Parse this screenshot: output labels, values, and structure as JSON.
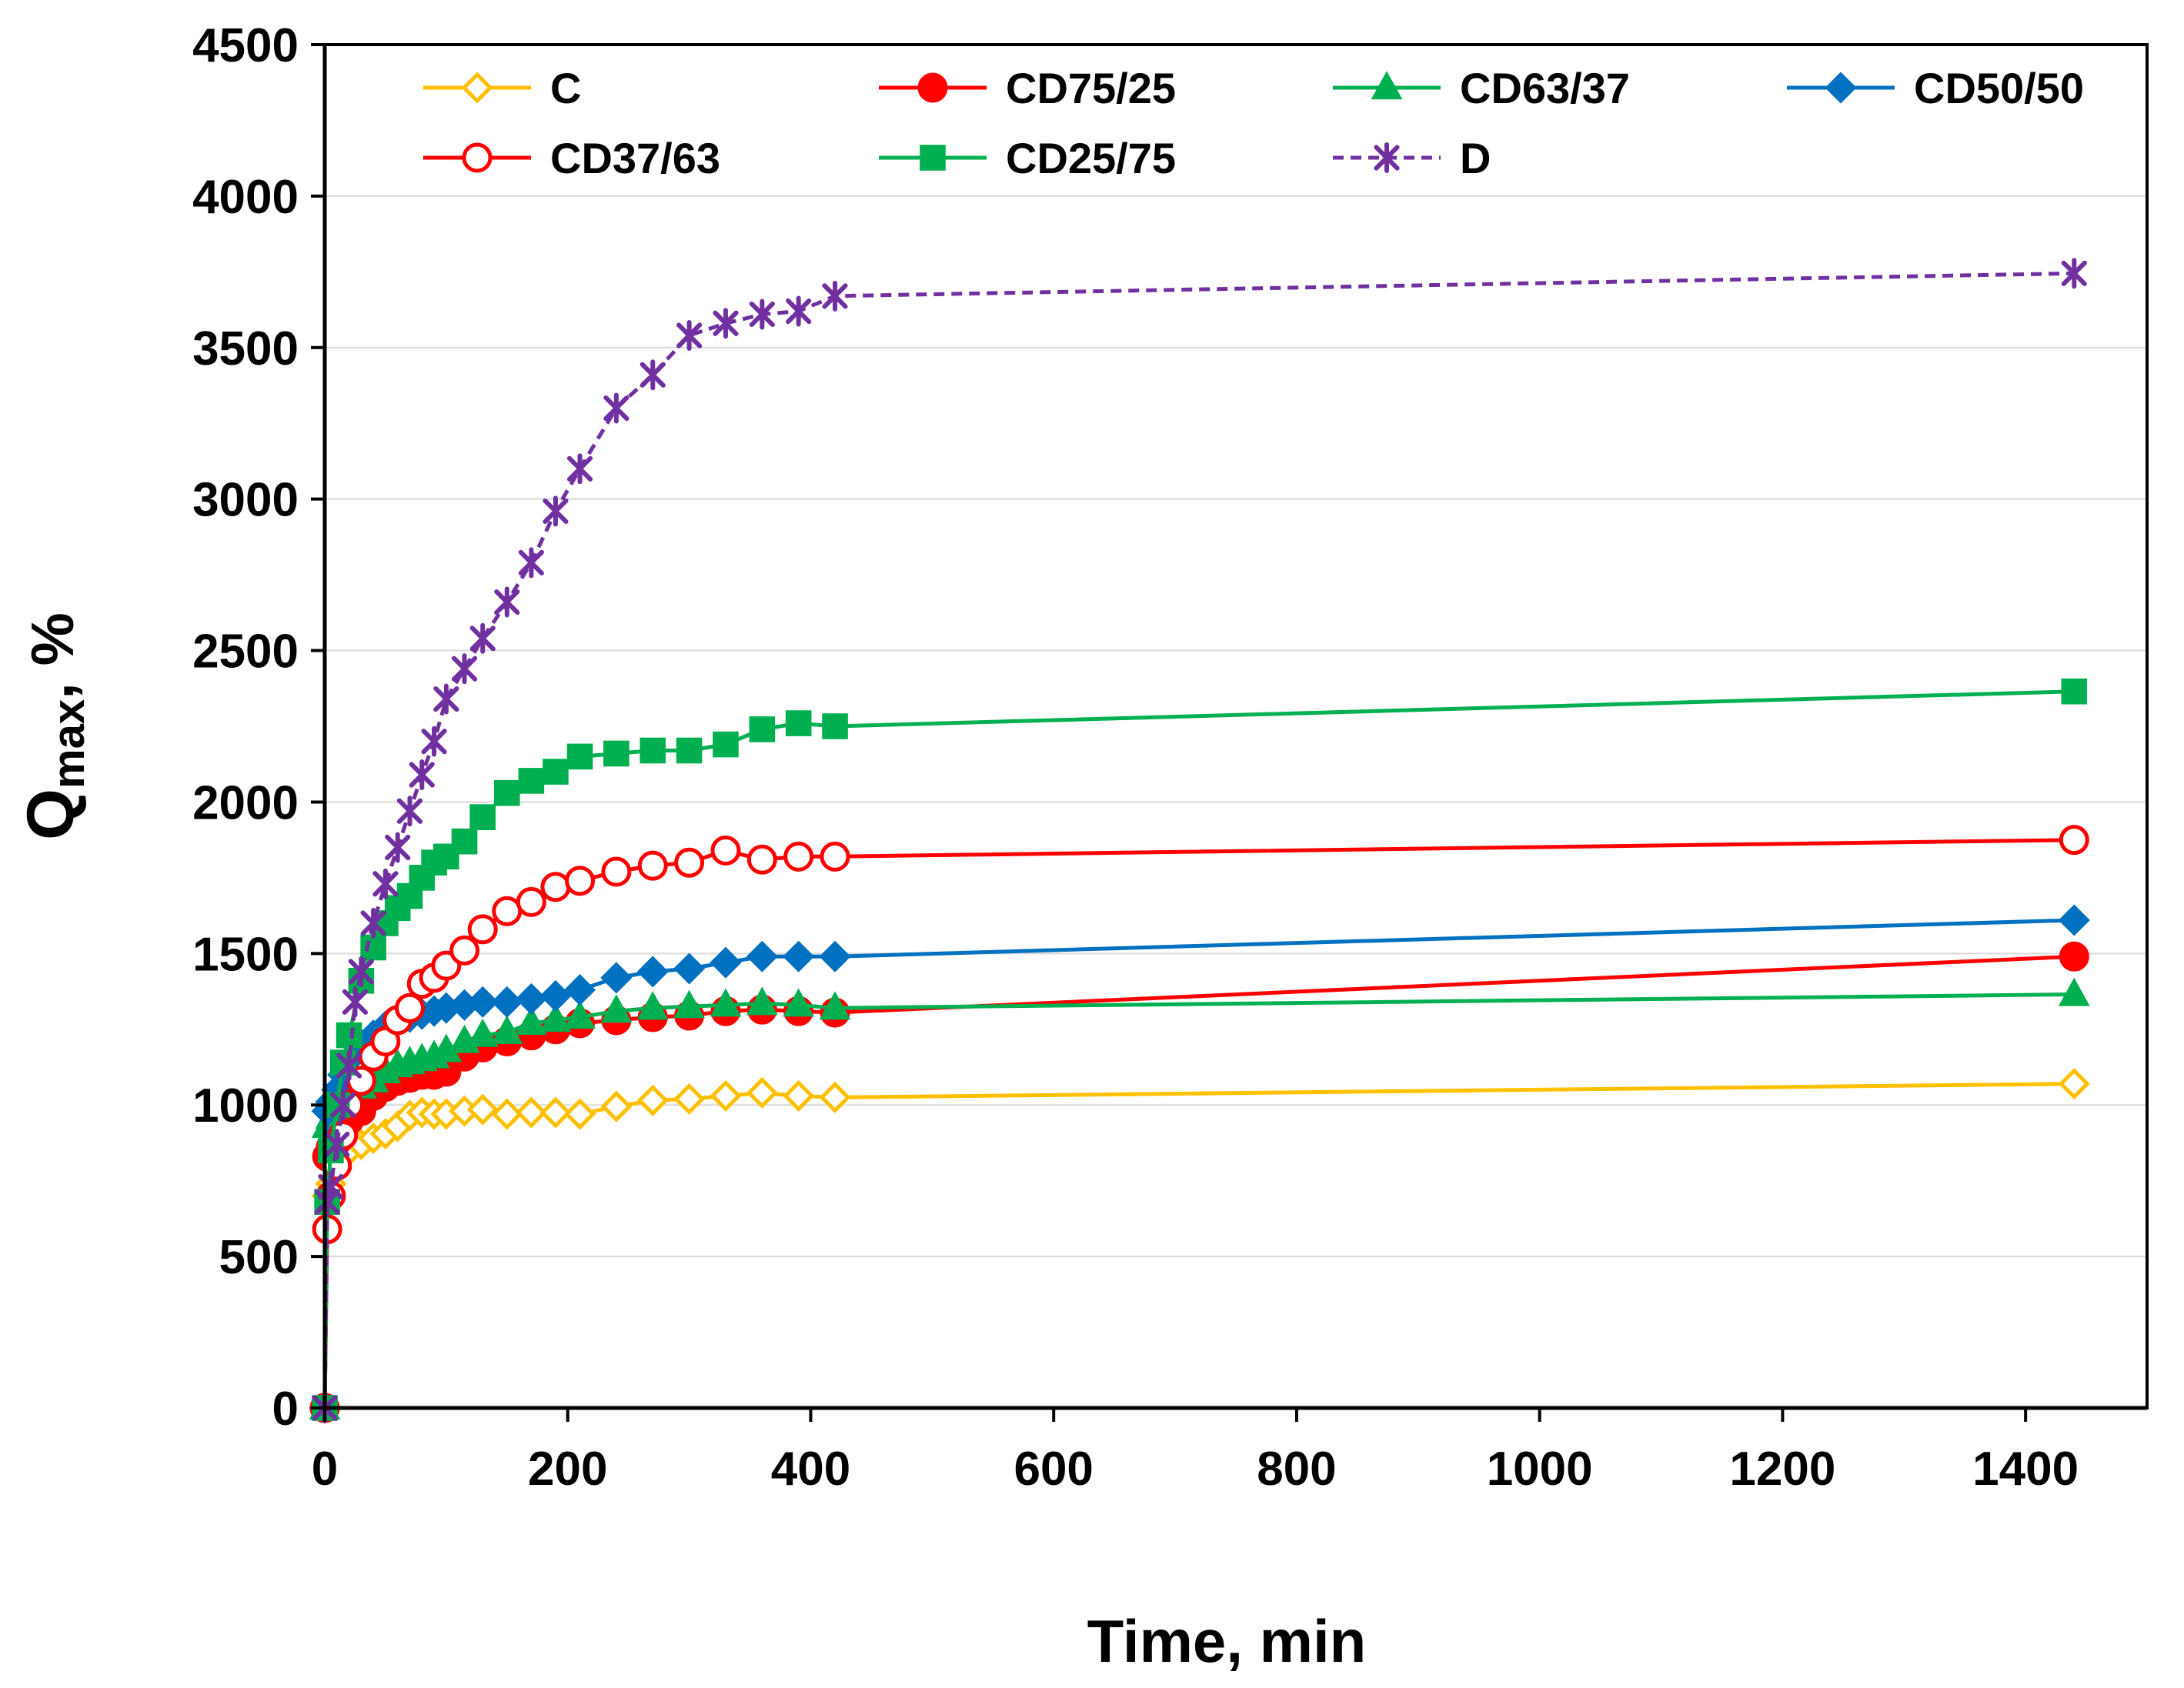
{
  "chart_data": {
    "type": "line",
    "title": "",
    "xlabel": "Time, min",
    "ylabel_main": "Q",
    "ylabel_sub": "max",
    "ylabel_suffix": ", %",
    "xlim": [
      0,
      1500
    ],
    "ylim": [
      0,
      4500
    ],
    "xticks": [
      0,
      200,
      400,
      600,
      800,
      1000,
      1200,
      1400
    ],
    "yticks": [
      0,
      500,
      1000,
      1500,
      2000,
      2500,
      3000,
      3500,
      4000,
      4500
    ],
    "grid": "horizontal",
    "legend_position": "top",
    "series": [
      {
        "name": "C",
        "color": "#FFC000",
        "marker": "diamond",
        "filled": false,
        "dashed": false,
        "x": [
          0,
          2,
          5,
          10,
          15,
          20,
          30,
          40,
          50,
          60,
          70,
          80,
          90,
          100,
          115,
          130,
          150,
          170,
          190,
          210,
          240,
          270,
          300,
          330,
          360,
          390,
          420,
          1440
        ],
        "y": [
          0,
          700,
          740,
          790,
          830,
          850,
          870,
          890,
          905,
          930,
          965,
          975,
          970,
          970,
          980,
          985,
          970,
          975,
          975,
          970,
          995,
          1015,
          1020,
          1030,
          1040,
          1030,
          1025,
          1070
        ]
      },
      {
        "name": "CD75/25",
        "color": "#FF0000",
        "marker": "circle",
        "filled": true,
        "dashed": false,
        "x": [
          0,
          2,
          5,
          10,
          15,
          20,
          30,
          40,
          50,
          60,
          70,
          80,
          90,
          100,
          115,
          130,
          150,
          170,
          190,
          210,
          240,
          270,
          300,
          330,
          360,
          390,
          420,
          1440
        ],
        "y": [
          0,
          830,
          860,
          880,
          900,
          950,
          980,
          1030,
          1060,
          1080,
          1090,
          1100,
          1100,
          1110,
          1160,
          1190,
          1210,
          1230,
          1250,
          1270,
          1280,
          1290,
          1295,
          1310,
          1315,
          1310,
          1305,
          1490
        ]
      },
      {
        "name": "CD63/37",
        "color": "#00B050",
        "marker": "triangle",
        "filled": true,
        "dashed": false,
        "x": [
          0,
          2,
          5,
          10,
          15,
          20,
          30,
          40,
          50,
          60,
          70,
          80,
          90,
          100,
          115,
          130,
          150,
          170,
          190,
          210,
          240,
          270,
          300,
          330,
          360,
          390,
          420,
          1440
        ],
        "y": [
          0,
          930,
          960,
          990,
          1010,
          1030,
          1060,
          1080,
          1110,
          1130,
          1140,
          1150,
          1160,
          1180,
          1210,
          1230,
          1240,
          1270,
          1280,
          1290,
          1310,
          1320,
          1325,
          1330,
          1335,
          1330,
          1320,
          1365
        ]
      },
      {
        "name": "CD50/50",
        "color": "#0070C0",
        "marker": "diamond",
        "filled": true,
        "dashed": false,
        "x": [
          0,
          2,
          5,
          10,
          15,
          20,
          30,
          40,
          50,
          60,
          70,
          80,
          90,
          100,
          115,
          130,
          150,
          170,
          190,
          210,
          240,
          270,
          300,
          330,
          360,
          390,
          420,
          1440
        ],
        "y": [
          0,
          980,
          1010,
          1050,
          1100,
          1150,
          1200,
          1230,
          1260,
          1280,
          1290,
          1300,
          1310,
          1320,
          1330,
          1340,
          1340,
          1350,
          1360,
          1380,
          1420,
          1440,
          1450,
          1470,
          1490,
          1490,
          1490,
          1610
        ]
      },
      {
        "name": "CD37/63",
        "color": "#FF0000",
        "marker": "circle",
        "filled": false,
        "dashed": false,
        "x": [
          0,
          2,
          5,
          10,
          15,
          20,
          30,
          40,
          50,
          60,
          70,
          80,
          90,
          100,
          115,
          130,
          150,
          170,
          190,
          210,
          240,
          270,
          300,
          330,
          360,
          390,
          420,
          1440
        ],
        "y": [
          0,
          590,
          700,
          800,
          900,
          1000,
          1080,
          1160,
          1210,
          1280,
          1320,
          1400,
          1420,
          1460,
          1510,
          1580,
          1640,
          1670,
          1720,
          1740,
          1770,
          1790,
          1800,
          1840,
          1810,
          1820,
          1820,
          1875
        ]
      },
      {
        "name": "CD25/75",
        "color": "#00B050",
        "marker": "square",
        "filled": true,
        "dashed": false,
        "x": [
          0,
          2,
          5,
          10,
          15,
          20,
          30,
          40,
          50,
          60,
          70,
          80,
          90,
          100,
          115,
          130,
          150,
          170,
          190,
          210,
          240,
          270,
          300,
          330,
          360,
          390,
          420,
          1440
        ],
        "y": [
          0,
          680,
          850,
          1000,
          1140,
          1230,
          1410,
          1520,
          1600,
          1650,
          1690,
          1750,
          1800,
          1820,
          1870,
          1950,
          2030,
          2070,
          2100,
          2150,
          2160,
          2170,
          2170,
          2190,
          2240,
          2260,
          2250,
          2365
        ]
      },
      {
        "name": "D",
        "color": "#7030A0",
        "marker": "asterisk",
        "filled": false,
        "dashed": true,
        "x": [
          0,
          2,
          5,
          10,
          15,
          20,
          25,
          30,
          40,
          50,
          60,
          70,
          80,
          90,
          100,
          115,
          130,
          150,
          170,
          190,
          210,
          240,
          270,
          300,
          330,
          360,
          390,
          420,
          1440
        ],
        "y": [
          0,
          680,
          730,
          870,
          1000,
          1130,
          1340,
          1440,
          1600,
          1730,
          1850,
          1970,
          2090,
          2200,
          2340,
          2440,
          2540,
          2660,
          2790,
          2960,
          3100,
          3300,
          3410,
          3540,
          3580,
          3610,
          3620,
          3670,
          3745
        ]
      }
    ]
  }
}
